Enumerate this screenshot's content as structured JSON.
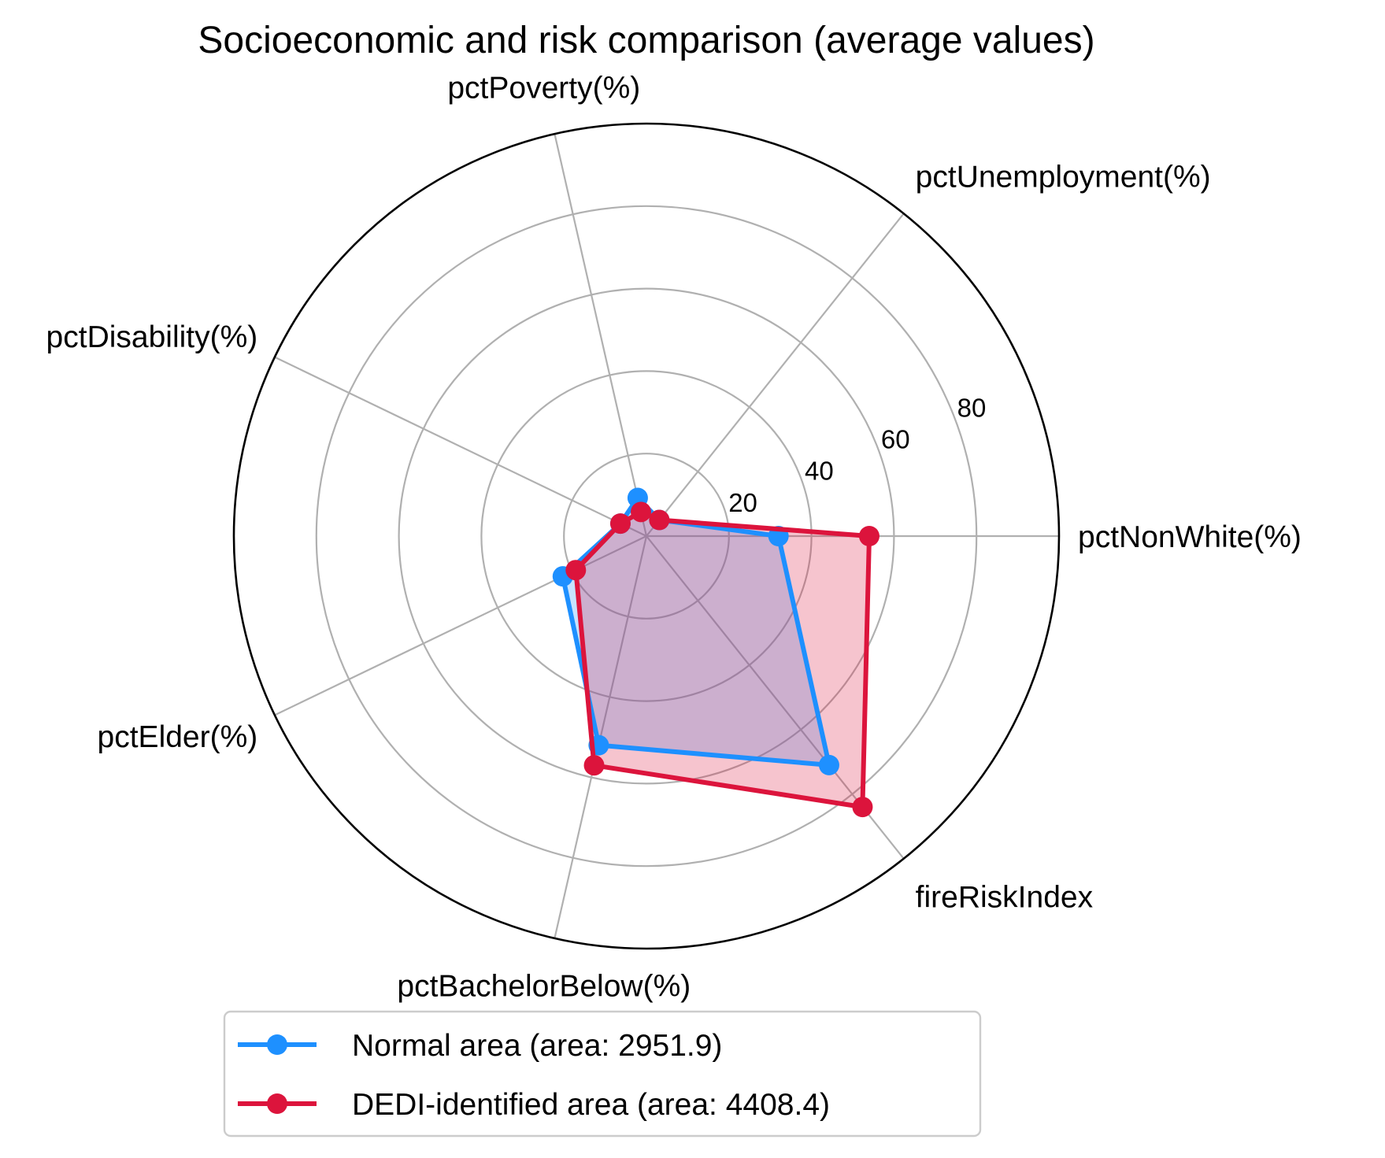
{
  "chart_data": {
    "type": "radar",
    "title": "Socioeconomic and risk comparison (average values)",
    "axes": [
      "pctNonWhite(%)",
      "pctUnemployment(%)",
      "pctPoverty(%)",
      "pctDisability(%)",
      "pctElder(%)",
      "pctBachelorBelow(%)",
      "fireRiskIndex"
    ],
    "rlim": [
      0,
      100
    ],
    "radial_ticks": [
      20,
      40,
      60,
      80
    ],
    "radial_tick_labels": [
      "20",
      "40",
      "60",
      "80"
    ],
    "grid": true,
    "legend_position": "bottom-center",
    "series": [
      {
        "name": "Normal area (area: 2951.9)",
        "color": "#1e90ff",
        "fill_color": "#1e90ff",
        "values": [
          32,
          5,
          9.5,
          7,
          22.5,
          52,
          71
        ]
      },
      {
        "name": "DEDI-identified area (area: 4408.4)",
        "color": "#dc143c",
        "fill_color": "#dc143c",
        "values": [
          54,
          5,
          6,
          7,
          19,
          57,
          84
        ]
      }
    ]
  }
}
